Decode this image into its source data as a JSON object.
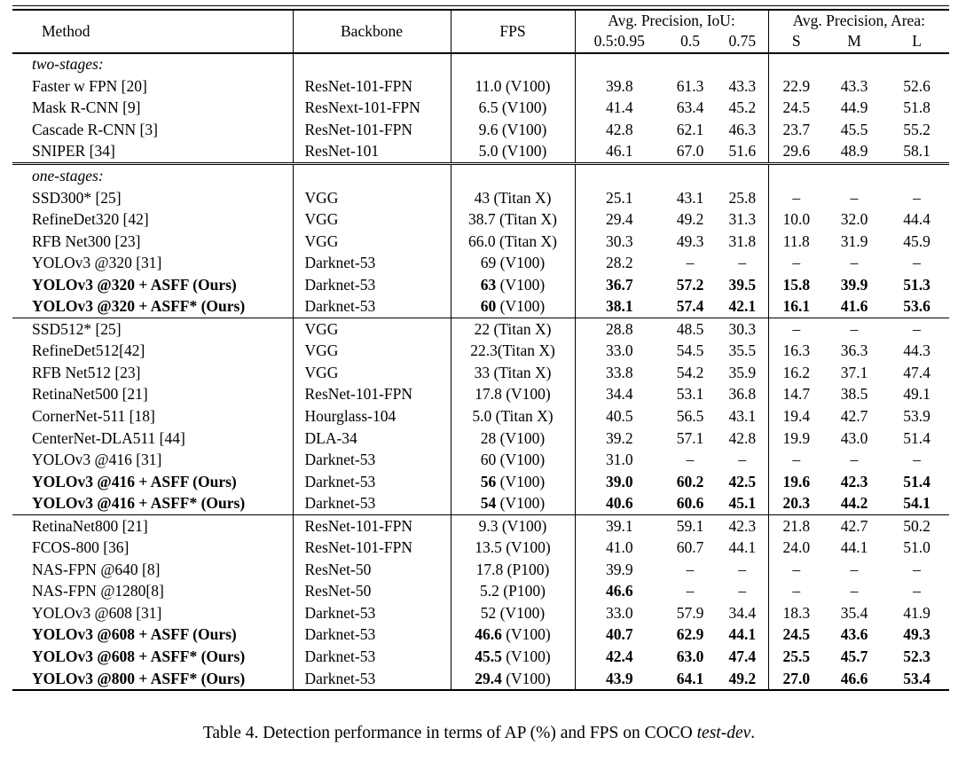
{
  "colors": {
    "text": "#000000",
    "background": "#ffffff",
    "rule": "#000000"
  },
  "table": {
    "header": {
      "method": "Method",
      "backbone": "Backbone",
      "fps": "FPS",
      "iou_group": "Avg. Precision, IoU:",
      "area_group": "Avg. Precision, Area:",
      "iou_cols": [
        "0.5:0.95",
        "0.5",
        "0.75"
      ],
      "area_cols": [
        "S",
        "M",
        "L"
      ]
    },
    "sections": [
      {
        "rule": "none",
        "label": "two-stages:",
        "rows": [
          {
            "method": "Faster w FPN [20]",
            "backbone": "ResNet-101-FPN",
            "fps_strong": "",
            "fps_rest": "11.0 (V100)",
            "cells": [
              "39.8",
              "61.3",
              "43.3",
              "22.9",
              "43.3",
              "52.6"
            ]
          },
          {
            "method": "Mask R-CNN [9]",
            "backbone": "ResNext-101-FPN",
            "fps_strong": "",
            "fps_rest": "6.5 (V100)",
            "cells": [
              "41.4",
              "63.4",
              "45.2",
              "24.5",
              "44.9",
              "51.8"
            ]
          },
          {
            "method": "Cascade R-CNN [3]",
            "backbone": "ResNet-101-FPN",
            "fps_strong": "",
            "fps_rest": "9.6 (V100)",
            "cells": [
              "42.8",
              "62.1",
              "46.3",
              "23.7",
              "45.5",
              "55.2"
            ]
          },
          {
            "method": "SNIPER [34]",
            "backbone": "ResNet-101",
            "fps_strong": "",
            "fps_rest": "5.0 (V100)",
            "cells": [
              "46.1",
              "67.0",
              "51.6",
              "29.6",
              "48.9",
              "58.1"
            ]
          }
        ]
      },
      {
        "rule": "double",
        "label": "one-stages:",
        "rows": [
          {
            "method": "SSD300* [25]",
            "backbone": "VGG",
            "fps_strong": "",
            "fps_rest": "43 (Titan X)",
            "cells": [
              "25.1",
              "43.1",
              "25.8",
              "–",
              "–",
              "–"
            ]
          },
          {
            "method": "RefineDet320 [42]",
            "backbone": "VGG",
            "fps_strong": "",
            "fps_rest": "38.7 (Titan X)",
            "cells": [
              "29.4",
              "49.2",
              "31.3",
              "10.0",
              "32.0",
              "44.4"
            ]
          },
          {
            "method": "RFB Net300 [23]",
            "backbone": "VGG",
            "fps_strong": "",
            "fps_rest": "66.0 (Titan X)",
            "cells": [
              "30.3",
              "49.3",
              "31.8",
              "11.8",
              "31.9",
              "45.9"
            ]
          },
          {
            "method": "YOLOv3 @320 [31]",
            "backbone": "Darknet-53",
            "fps_strong": "",
            "fps_rest": "69 (V100)",
            "cells": [
              "28.2",
              "–",
              "–",
              "–",
              "–",
              "–"
            ]
          },
          {
            "method": "YOLOv3 @320 + ASFF (Ours)",
            "bold": true,
            "backbone": "Darknet-53",
            "fps_strong": "63",
            "fps_rest": " (V100)",
            "bold_cells": "all",
            "cells": [
              "36.7",
              "57.2",
              "39.5",
              "15.8",
              "39.9",
              "51.3"
            ]
          },
          {
            "method": "YOLOv3 @320 + ASFF* (Ours)",
            "bold": true,
            "backbone": "Darknet-53",
            "fps_strong": "60",
            "fps_rest": " (V100)",
            "bold_cells": "all",
            "cells": [
              "38.1",
              "57.4",
              "42.1",
              "16.1",
              "41.6",
              "53.6"
            ]
          }
        ]
      },
      {
        "rule": "single",
        "label": null,
        "rows": [
          {
            "method": "SSD512* [25]",
            "backbone": "VGG",
            "fps_strong": "",
            "fps_rest": "22 (Titan X)",
            "cells": [
              "28.8",
              "48.5",
              "30.3",
              "–",
              "–",
              "–"
            ]
          },
          {
            "method": "RefineDet512[42]",
            "backbone": "VGG",
            "fps_strong": "",
            "fps_rest": "22.3(Titan X)",
            "cells": [
              "33.0",
              "54.5",
              "35.5",
              "16.3",
              "36.3",
              "44.3"
            ]
          },
          {
            "method": "RFB Net512 [23]",
            "backbone": "VGG",
            "fps_strong": "",
            "fps_rest": "33 (Titan X)",
            "cells": [
              "33.8",
              "54.2",
              "35.9",
              "16.2",
              "37.1",
              "47.4"
            ]
          },
          {
            "method": "RetinaNet500 [21]",
            "backbone": "ResNet-101-FPN",
            "fps_strong": "",
            "fps_rest": "17.8 (V100)",
            "cells": [
              "34.4",
              "53.1",
              "36.8",
              "14.7",
              "38.5",
              "49.1"
            ]
          },
          {
            "method": "CornerNet-511 [18]",
            "backbone": "Hourglass-104",
            "fps_strong": "",
            "fps_rest": "5.0 (Titan X)",
            "cells": [
              "40.5",
              "56.5",
              "43.1",
              "19.4",
              "42.7",
              "53.9"
            ]
          },
          {
            "method": "CenterNet-DLA511 [44]",
            "backbone": "DLA-34",
            "fps_strong": "",
            "fps_rest": "28 (V100)",
            "cells": [
              "39.2",
              "57.1",
              "42.8",
              "19.9",
              "43.0",
              "51.4"
            ]
          },
          {
            "method": "YOLOv3 @416 [31]",
            "backbone": "Darknet-53",
            "fps_strong": "",
            "fps_rest": "60 (V100)",
            "cells": [
              "31.0",
              "–",
              "–",
              "–",
              "–",
              "–"
            ]
          },
          {
            "method": "YOLOv3 @416 + ASFF (Ours)",
            "bold": true,
            "backbone": "Darknet-53",
            "fps_strong": "56",
            "fps_rest": " (V100)",
            "bold_cells": "all",
            "cells": [
              "39.0",
              "60.2",
              "42.5",
              "19.6",
              "42.3",
              "51.4"
            ]
          },
          {
            "method": "YOLOv3 @416 + ASFF* (Ours)",
            "bold": true,
            "backbone": "Darknet-53",
            "fps_strong": "54",
            "fps_rest": " (V100)",
            "bold_cells": "all",
            "cells": [
              "40.6",
              "60.6",
              "45.1",
              "20.3",
              "44.2",
              "54.1"
            ]
          }
        ]
      },
      {
        "rule": "single",
        "label": null,
        "rows": [
          {
            "method": "RetinaNet800 [21]",
            "backbone": "ResNet-101-FPN",
            "fps_strong": "",
            "fps_rest": "9.3 (V100)",
            "cells": [
              "39.1",
              "59.1",
              "42.3",
              "21.8",
              "42.7",
              "50.2"
            ]
          },
          {
            "method": "FCOS-800 [36]",
            "backbone": "ResNet-101-FPN",
            "fps_strong": "",
            "fps_rest": "13.5 (V100)",
            "cells": [
              "41.0",
              "60.7",
              "44.1",
              "24.0",
              "44.1",
              "51.0"
            ]
          },
          {
            "method": "NAS-FPN @640 [8]",
            "backbone": "ResNet-50",
            "fps_strong": "",
            "fps_rest": "17.8 (P100)",
            "cells": [
              "39.9",
              "–",
              "–",
              "–",
              "–",
              "–"
            ]
          },
          {
            "method": "NAS-FPN @1280[8]",
            "backbone": "ResNet-50",
            "fps_strong": "",
            "fps_rest": "5.2 (P100)",
            "bold_cells": [
              0
            ],
            "cells": [
              "46.6",
              "–",
              "–",
              "–",
              "–",
              "–"
            ]
          },
          {
            "method": "YOLOv3 @608 [31]",
            "backbone": "Darknet-53",
            "fps_strong": "",
            "fps_rest": "52 (V100)",
            "cells": [
              "33.0",
              "57.9",
              "34.4",
              "18.3",
              "35.4",
              "41.9"
            ]
          },
          {
            "method": "YOLOv3 @608 + ASFF (Ours)",
            "bold": true,
            "backbone": "Darknet-53",
            "fps_strong": "46.6",
            "fps_rest": " (V100)",
            "bold_cells": "all",
            "cells": [
              "40.7",
              "62.9",
              "44.1",
              "24.5",
              "43.6",
              "49.3"
            ]
          },
          {
            "method": "YOLOv3 @608 + ASFF* (Ours)",
            "bold": true,
            "backbone": "Darknet-53",
            "fps_strong": "45.5",
            "fps_rest": " (V100)",
            "bold_cells": "all",
            "cells": [
              "42.4",
              "63.0",
              "47.4",
              "25.5",
              "45.7",
              "52.3"
            ]
          },
          {
            "method": "YOLOv3 @800 + ASFF* (Ours)",
            "bold": true,
            "backbone": "Darknet-53",
            "fps_strong": "29.4",
            "fps_rest": " (V100)",
            "bold_cells": "all",
            "cells": [
              "43.9",
              "64.1",
              "49.2",
              "27.0",
              "46.6",
              "53.4"
            ]
          }
        ]
      }
    ]
  },
  "caption": {
    "prefix": "Table 4. Detection performance in terms of AP (%) and FPS on COCO ",
    "italic": "test-dev",
    "suffix": "."
  }
}
